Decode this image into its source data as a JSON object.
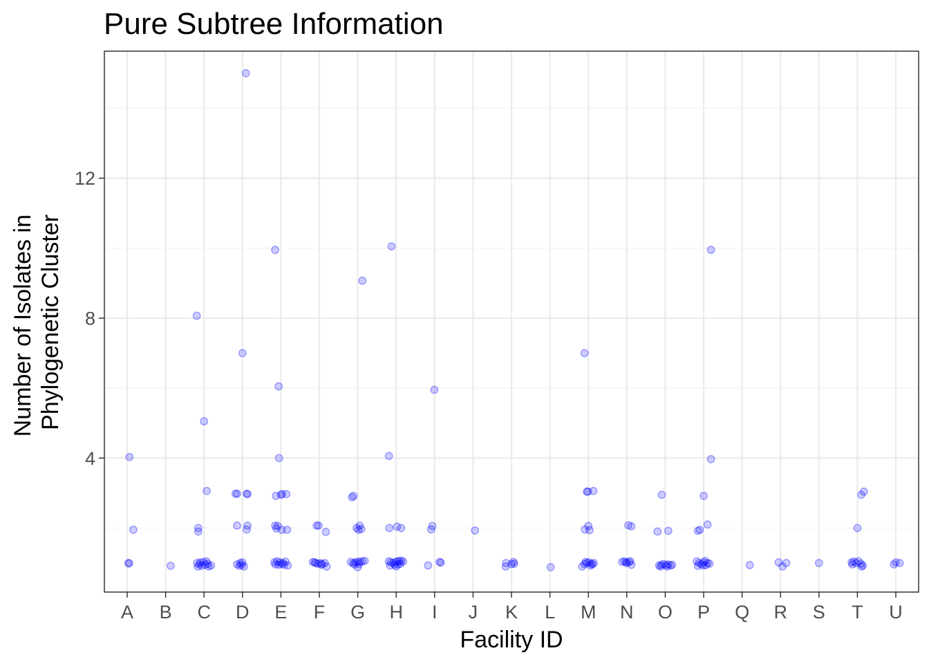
{
  "chart_data": {
    "type": "scatter",
    "title": "Pure Subtree Information",
    "xlabel": "Facility ID",
    "ylabel_lines": [
      "Number of Isolates in",
      "Phylogenetic Cluster"
    ],
    "categories": [
      "A",
      "B",
      "C",
      "D",
      "E",
      "F",
      "G",
      "H",
      "I",
      "J",
      "K",
      "L",
      "M",
      "N",
      "O",
      "P",
      "Q",
      "R",
      "S",
      "T",
      "U"
    ],
    "yticks": [
      4,
      8,
      12
    ],
    "ylim": [
      0.17,
      15.63
    ],
    "grid": true,
    "point_color": "#0000ff",
    "points": [
      {
        "x": "A",
        "jitter": 0.06,
        "y": 4.03
      },
      {
        "x": "A",
        "jitter": 0.16,
        "y": 1.95
      },
      {
        "x": "A",
        "jitter": 0.05,
        "y": 0.99
      },
      {
        "x": "A",
        "jitter": 0.03,
        "y": 1.0
      },
      {
        "x": "B",
        "jitter": 0.13,
        "y": 0.92
      },
      {
        "x": "C",
        "jitter": -0.19,
        "y": 8.07
      },
      {
        "x": "C",
        "jitter": 0.0,
        "y": 5.05
      },
      {
        "x": "C",
        "jitter": 0.07,
        "y": 3.06
      },
      {
        "x": "C",
        "jitter": -0.15,
        "y": 2.0
      },
      {
        "x": "C",
        "jitter": -0.15,
        "y": 1.9
      },
      {
        "x": "C",
        "jitter": -0.18,
        "y": 1.0
      },
      {
        "x": "C",
        "jitter": -0.1,
        "y": 1.02
      },
      {
        "x": "C",
        "jitter": -0.02,
        "y": 1.03
      },
      {
        "x": "C",
        "jitter": 0.06,
        "y": 1.05
      },
      {
        "x": "C",
        "jitter": -0.16,
        "y": 0.9
      },
      {
        "x": "C",
        "jitter": -0.06,
        "y": 0.92
      },
      {
        "x": "C",
        "jitter": 0.03,
        "y": 0.95
      },
      {
        "x": "C",
        "jitter": 0.12,
        "y": 0.9
      },
      {
        "x": "C",
        "jitter": 0.18,
        "y": 0.93
      },
      {
        "x": "C",
        "jitter": -0.12,
        "y": 0.96
      },
      {
        "x": "C",
        "jitter": 0.09,
        "y": 0.98
      },
      {
        "x": "D",
        "jitter": 0.09,
        "y": 15.0
      },
      {
        "x": "D",
        "jitter": 0.0,
        "y": 7.0
      },
      {
        "x": "D",
        "jitter": -0.18,
        "y": 2.98
      },
      {
        "x": "D",
        "jitter": -0.14,
        "y": 2.98
      },
      {
        "x": "D",
        "jitter": 0.11,
        "y": 2.98
      },
      {
        "x": "D",
        "jitter": 0.13,
        "y": 2.97
      },
      {
        "x": "D",
        "jitter": -0.14,
        "y": 2.07
      },
      {
        "x": "D",
        "jitter": 0.13,
        "y": 2.07
      },
      {
        "x": "D",
        "jitter": 0.11,
        "y": 1.96
      },
      {
        "x": "D",
        "jitter": -0.14,
        "y": 0.96
      },
      {
        "x": "D",
        "jitter": -0.06,
        "y": 1.0
      },
      {
        "x": "D",
        "jitter": 0.0,
        "y": 1.02
      },
      {
        "x": "D",
        "jitter": -0.08,
        "y": 0.92
      },
      {
        "x": "D",
        "jitter": 0.04,
        "y": 0.9
      },
      {
        "x": "D",
        "jitter": -0.02,
        "y": 0.95
      },
      {
        "x": "E",
        "jitter": -0.15,
        "y": 9.95
      },
      {
        "x": "E",
        "jitter": -0.06,
        "y": 6.05
      },
      {
        "x": "E",
        "jitter": -0.05,
        "y": 4.0
      },
      {
        "x": "E",
        "jitter": -0.13,
        "y": 2.92
      },
      {
        "x": "E",
        "jitter": 0.0,
        "y": 2.95
      },
      {
        "x": "E",
        "jitter": 0.03,
        "y": 2.97
      },
      {
        "x": "E",
        "jitter": 0.14,
        "y": 2.97
      },
      {
        "x": "E",
        "jitter": -0.15,
        "y": 2.07
      },
      {
        "x": "E",
        "jitter": -0.08,
        "y": 2.06
      },
      {
        "x": "E",
        "jitter": -0.12,
        "y": 1.99
      },
      {
        "x": "E",
        "jitter": 0.02,
        "y": 1.95
      },
      {
        "x": "E",
        "jitter": 0.16,
        "y": 1.95
      },
      {
        "x": "E",
        "jitter": -0.17,
        "y": 1.02
      },
      {
        "x": "E",
        "jitter": -0.1,
        "y": 1.05
      },
      {
        "x": "E",
        "jitter": -0.03,
        "y": 1.02
      },
      {
        "x": "E",
        "jitter": 0.05,
        "y": 1.0
      },
      {
        "x": "E",
        "jitter": 0.12,
        "y": 1.04
      },
      {
        "x": "E",
        "jitter": -0.14,
        "y": 0.96
      },
      {
        "x": "E",
        "jitter": -0.06,
        "y": 0.95
      },
      {
        "x": "E",
        "jitter": 0.02,
        "y": 0.97
      },
      {
        "x": "E",
        "jitter": 0.09,
        "y": 0.95
      },
      {
        "x": "E",
        "jitter": 0.18,
        "y": 0.93
      },
      {
        "x": "F",
        "jitter": -0.07,
        "y": 2.07
      },
      {
        "x": "F",
        "jitter": -0.02,
        "y": 2.07
      },
      {
        "x": "F",
        "jitter": 0.17,
        "y": 1.89
      },
      {
        "x": "F",
        "jitter": -0.17,
        "y": 1.03
      },
      {
        "x": "F",
        "jitter": -0.1,
        "y": 1.0
      },
      {
        "x": "F",
        "jitter": -0.04,
        "y": 0.98
      },
      {
        "x": "F",
        "jitter": 0.02,
        "y": 1.0
      },
      {
        "x": "F",
        "jitter": 0.08,
        "y": 0.97
      },
      {
        "x": "F",
        "jitter": 0.14,
        "y": 1.0
      },
      {
        "x": "F",
        "jitter": -0.12,
        "y": 1.02
      },
      {
        "x": "F",
        "jitter": 0.05,
        "y": 0.95
      },
      {
        "x": "F",
        "jitter": 0.19,
        "y": 0.9
      },
      {
        "x": "G",
        "jitter": 0.12,
        "y": 9.07
      },
      {
        "x": "G",
        "jitter": -0.15,
        "y": 2.88
      },
      {
        "x": "G",
        "jitter": -0.11,
        "y": 2.92
      },
      {
        "x": "G",
        "jitter": 0.05,
        "y": 2.07
      },
      {
        "x": "G",
        "jitter": -0.03,
        "y": 2.0
      },
      {
        "x": "G",
        "jitter": 0.02,
        "y": 1.95
      },
      {
        "x": "G",
        "jitter": 0.09,
        "y": 1.97
      },
      {
        "x": "G",
        "jitter": -0.18,
        "y": 1.03
      },
      {
        "x": "G",
        "jitter": -0.12,
        "y": 1.0
      },
      {
        "x": "G",
        "jitter": -0.06,
        "y": 1.02
      },
      {
        "x": "G",
        "jitter": 0.0,
        "y": 1.04
      },
      {
        "x": "G",
        "jitter": 0.06,
        "y": 1.03
      },
      {
        "x": "G",
        "jitter": 0.12,
        "y": 1.05
      },
      {
        "x": "G",
        "jitter": 0.18,
        "y": 1.06
      },
      {
        "x": "G",
        "jitter": -0.09,
        "y": 0.96
      },
      {
        "x": "G",
        "jitter": 0.03,
        "y": 0.97
      },
      {
        "x": "G",
        "jitter": 0.0,
        "y": 0.88
      },
      {
        "x": "H",
        "jitter": -0.12,
        "y": 10.05
      },
      {
        "x": "H",
        "jitter": -0.19,
        "y": 4.06
      },
      {
        "x": "H",
        "jitter": -0.18,
        "y": 2.0
      },
      {
        "x": "H",
        "jitter": 0.02,
        "y": 2.04
      },
      {
        "x": "H",
        "jitter": 0.13,
        "y": 2.0
      },
      {
        "x": "H",
        "jitter": -0.19,
        "y": 1.05
      },
      {
        "x": "H",
        "jitter": -0.14,
        "y": 1.02
      },
      {
        "x": "H",
        "jitter": -0.08,
        "y": 1.0
      },
      {
        "x": "H",
        "jitter": -0.02,
        "y": 1.03
      },
      {
        "x": "H",
        "jitter": 0.03,
        "y": 1.05
      },
      {
        "x": "H",
        "jitter": 0.08,
        "y": 1.05
      },
      {
        "x": "H",
        "jitter": 0.13,
        "y": 1.07
      },
      {
        "x": "H",
        "jitter": 0.18,
        "y": 1.04
      },
      {
        "x": "H",
        "jitter": -0.16,
        "y": 0.93
      },
      {
        "x": "H",
        "jitter": -0.04,
        "y": 0.95
      },
      {
        "x": "H",
        "jitter": 0.05,
        "y": 0.96
      },
      {
        "x": "H",
        "jitter": 0.11,
        "y": 0.98
      },
      {
        "x": "H",
        "jitter": 0.0,
        "y": 0.9
      },
      {
        "x": "I",
        "jitter": -0.01,
        "y": 5.95
      },
      {
        "x": "I",
        "jitter": -0.06,
        "y": 2.06
      },
      {
        "x": "I",
        "jitter": -0.09,
        "y": 1.96
      },
      {
        "x": "I",
        "jitter": -0.17,
        "y": 0.93
      },
      {
        "x": "I",
        "jitter": 0.13,
        "y": 1.03
      },
      {
        "x": "I",
        "jitter": 0.16,
        "y": 1.01
      },
      {
        "x": "J",
        "jitter": 0.05,
        "y": 1.93
      },
      {
        "x": "K",
        "jitter": -0.15,
        "y": 0.9
      },
      {
        "x": "K",
        "jitter": -0.14,
        "y": 1.0
      },
      {
        "x": "K",
        "jitter": 0.0,
        "y": 0.97
      },
      {
        "x": "K",
        "jitter": 0.05,
        "y": 1.03
      },
      {
        "x": "K",
        "jitter": 0.07,
        "y": 0.98
      },
      {
        "x": "L",
        "jitter": 0.02,
        "y": 0.88
      },
      {
        "x": "M",
        "jitter": -0.1,
        "y": 7.0
      },
      {
        "x": "M",
        "jitter": -0.04,
        "y": 3.04
      },
      {
        "x": "M",
        "jitter": -0.01,
        "y": 3.04
      },
      {
        "x": "M",
        "jitter": 0.13,
        "y": 3.06
      },
      {
        "x": "M",
        "jitter": 0.0,
        "y": 2.06
      },
      {
        "x": "M",
        "jitter": -0.09,
        "y": 1.96
      },
      {
        "x": "M",
        "jitter": 0.03,
        "y": 1.94
      },
      {
        "x": "M",
        "jitter": -0.16,
        "y": 0.9
      },
      {
        "x": "M",
        "jitter": -0.1,
        "y": 0.97
      },
      {
        "x": "M",
        "jitter": -0.04,
        "y": 1.0
      },
      {
        "x": "M",
        "jitter": 0.02,
        "y": 1.02
      },
      {
        "x": "M",
        "jitter": 0.08,
        "y": 0.98
      },
      {
        "x": "M",
        "jitter": 0.14,
        "y": 1.0
      },
      {
        "x": "M",
        "jitter": -0.07,
        "y": 1.03
      },
      {
        "x": "M",
        "jitter": 0.05,
        "y": 0.93
      },
      {
        "x": "M",
        "jitter": 0.11,
        "y": 0.96
      },
      {
        "x": "N",
        "jitter": 0.04,
        "y": 2.08
      },
      {
        "x": "N",
        "jitter": 0.12,
        "y": 2.05
      },
      {
        "x": "N",
        "jitter": -0.12,
        "y": 1.03
      },
      {
        "x": "N",
        "jitter": -0.06,
        "y": 1.05
      },
      {
        "x": "N",
        "jitter": 0.0,
        "y": 1.0
      },
      {
        "x": "N",
        "jitter": 0.06,
        "y": 1.03
      },
      {
        "x": "N",
        "jitter": 0.12,
        "y": 0.95
      },
      {
        "x": "N",
        "jitter": -0.02,
        "y": 1.02
      },
      {
        "x": "N",
        "jitter": 0.09,
        "y": 1.05
      },
      {
        "x": "O",
        "jitter": -0.09,
        "y": 2.95
      },
      {
        "x": "O",
        "jitter": -0.2,
        "y": 1.9
      },
      {
        "x": "O",
        "jitter": 0.08,
        "y": 1.92
      },
      {
        "x": "O",
        "jitter": -0.16,
        "y": 0.93
      },
      {
        "x": "O",
        "jitter": -0.1,
        "y": 0.95
      },
      {
        "x": "O",
        "jitter": -0.04,
        "y": 0.97
      },
      {
        "x": "O",
        "jitter": 0.02,
        "y": 0.94
      },
      {
        "x": "O",
        "jitter": 0.08,
        "y": 0.96
      },
      {
        "x": "O",
        "jitter": 0.14,
        "y": 0.93
      },
      {
        "x": "O",
        "jitter": -0.12,
        "y": 0.9
      },
      {
        "x": "O",
        "jitter": 0.05,
        "y": 0.9
      },
      {
        "x": "O",
        "jitter": 0.18,
        "y": 0.95
      },
      {
        "x": "P",
        "jitter": 0.19,
        "y": 9.95
      },
      {
        "x": "P",
        "jitter": 0.19,
        "y": 3.97
      },
      {
        "x": "P",
        "jitter": 0.0,
        "y": 2.92
      },
      {
        "x": "P",
        "jitter": 0.1,
        "y": 2.1
      },
      {
        "x": "P",
        "jitter": -0.15,
        "y": 1.92
      },
      {
        "x": "P",
        "jitter": -0.1,
        "y": 1.95
      },
      {
        "x": "P",
        "jitter": -0.18,
        "y": 1.05
      },
      {
        "x": "P",
        "jitter": -0.12,
        "y": 1.0
      },
      {
        "x": "P",
        "jitter": -0.06,
        "y": 0.97
      },
      {
        "x": "P",
        "jitter": 0.0,
        "y": 1.02
      },
      {
        "x": "P",
        "jitter": 0.04,
        "y": 1.06
      },
      {
        "x": "P",
        "jitter": 0.1,
        "y": 1.0
      },
      {
        "x": "P",
        "jitter": 0.15,
        "y": 0.98
      },
      {
        "x": "P",
        "jitter": -0.15,
        "y": 0.92
      },
      {
        "x": "P",
        "jitter": -0.02,
        "y": 0.93
      },
      {
        "x": "P",
        "jitter": 0.06,
        "y": 0.94
      },
      {
        "x": "Q",
        "jitter": 0.2,
        "y": 0.94
      },
      {
        "x": "R",
        "jitter": -0.05,
        "y": 1.02
      },
      {
        "x": "R",
        "jitter": 0.05,
        "y": 0.9
      },
      {
        "x": "R",
        "jitter": 0.15,
        "y": 1.0
      },
      {
        "x": "S",
        "jitter": 0.0,
        "y": 1.0
      },
      {
        "x": "T",
        "jitter": 0.0,
        "y": 2.0
      },
      {
        "x": "T",
        "jitter": 0.1,
        "y": 2.95
      },
      {
        "x": "T",
        "jitter": 0.17,
        "y": 3.04
      },
      {
        "x": "T",
        "jitter": -0.15,
        "y": 1.02
      },
      {
        "x": "T",
        "jitter": -0.09,
        "y": 1.04
      },
      {
        "x": "T",
        "jitter": -0.03,
        "y": 1.0
      },
      {
        "x": "T",
        "jitter": 0.03,
        "y": 1.05
      },
      {
        "x": "T",
        "jitter": 0.09,
        "y": 0.98
      },
      {
        "x": "T",
        "jitter": 0.14,
        "y": 0.93
      },
      {
        "x": "T",
        "jitter": -0.13,
        "y": 0.96
      },
      {
        "x": "T",
        "jitter": 0.11,
        "y": 0.9
      },
      {
        "x": "U",
        "jitter": -0.05,
        "y": 0.96
      },
      {
        "x": "U",
        "jitter": 0.0,
        "y": 1.02
      },
      {
        "x": "U",
        "jitter": 0.1,
        "y": 1.0
      }
    ]
  }
}
